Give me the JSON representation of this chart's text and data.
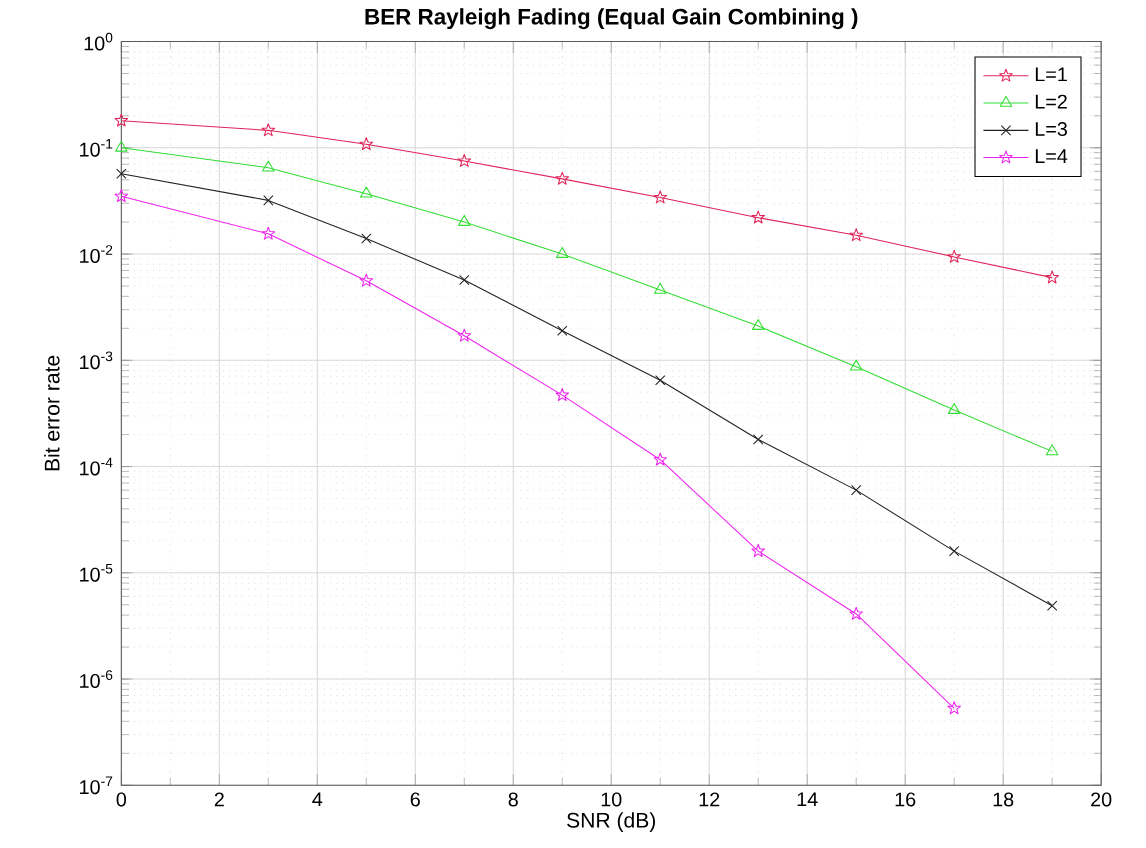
{
  "chart_data": {
    "type": "line",
    "title": "BER Rayleigh Fading (Equal Gain Combining )",
    "xlabel": "SNR (dB)",
    "ylabel": "Bit error rate",
    "log": "y",
    "grid": true,
    "legend": "top right",
    "line_style": "solid",
    "x": [
      0,
      3,
      5,
      7,
      9,
      11,
      13,
      15,
      17,
      19
    ],
    "xlim": [
      0,
      20
    ],
    "xticks": [
      0,
      2,
      4,
      6,
      8,
      10,
      12,
      14,
      16,
      18,
      20
    ],
    "ylim": [
      1e-07,
      1
    ],
    "yticks": [
      {
        "value": 1e-07,
        "label": "10$^{-7}$"
      },
      {
        "value": 1e-06,
        "label": "10$^{-6}$"
      },
      {
        "value": 1e-05,
        "label": "10$^{-5}$"
      },
      {
        "value": 0.0001,
        "label": "10$^{-4}$"
      },
      {
        "value": 0.001,
        "label": "10$^{-3}$"
      },
      {
        "value": 0.01,
        "label": "10$^{-2}$"
      },
      {
        "value": 0.1,
        "label": "10$^{-1}$"
      },
      {
        "value": 1,
        "label": "10$^{0}$"
      }
    ],
    "series": [
      {
        "name": "L=1",
        "color": "#e0245a",
        "marker": "star",
        "values": [
          0.18,
          0.146,
          0.108,
          0.075,
          0.051,
          0.034,
          0.022,
          0.015,
          0.0094,
          0.006
        ]
      },
      {
        "name": "L=2",
        "color": "#33dd33",
        "marker": "triangle",
        "values": [
          0.1,
          0.065,
          0.037,
          0.02,
          0.01,
          0.0046,
          0.0021,
          0.00087,
          0.00034,
          0.000139
        ]
      },
      {
        "name": "L=3",
        "color": "#222222",
        "marker": "cross",
        "values": [
          0.057,
          0.032,
          0.014,
          0.0057,
          0.0019,
          0.00065,
          0.00018,
          6e-05,
          1.6e-05,
          4.9e-06
        ]
      },
      {
        "name": "L=4",
        "color": "#ee22ee",
        "marker": "star",
        "values": [
          0.035,
          0.0155,
          0.0056,
          0.0017,
          0.00047,
          0.000116,
          1.6e-05,
          4.1e-06,
          5.3e-07,
          null
        ]
      }
    ]
  }
}
